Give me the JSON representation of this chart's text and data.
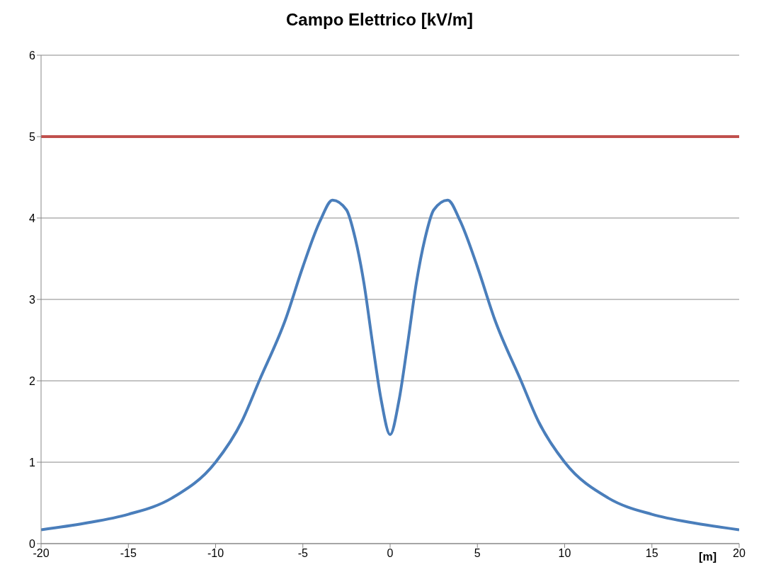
{
  "chart_data": {
    "type": "line",
    "title": "Campo Elettrico [kV/m]",
    "xlabel": "[m]",
    "series": [
      {
        "color": "#4a7ebb",
        "x": [
          -20,
          -17.5,
          -15,
          -12.5,
          -10,
          -8.5,
          -7.5,
          -6,
          -5,
          -4,
          -3.3,
          -2.5,
          -2,
          -1.5,
          -1,
          -0.5,
          0,
          0.5,
          1,
          1.5,
          2,
          2.5,
          3.3,
          4,
          5,
          6,
          7.5,
          8.5,
          10,
          12.5,
          15,
          17.5,
          20
        ],
        "values": [
          0.17,
          0.25,
          0.36,
          0.56,
          1.0,
          1.5,
          2.0,
          2.75,
          3.4,
          3.97,
          4.22,
          4.1,
          3.75,
          3.2,
          2.45,
          1.75,
          1.34,
          1.75,
          2.45,
          3.2,
          3.75,
          4.1,
          4.22,
          3.97,
          3.4,
          2.75,
          2.0,
          1.5,
          1.0,
          0.56,
          0.36,
          0.25,
          0.17
        ]
      }
    ],
    "xlim": [
      -20,
      20
    ],
    "xticks": [
      -20,
      -15,
      -10,
      -5,
      0,
      5,
      10,
      15,
      20
    ],
    "ylim": [
      0,
      6
    ],
    "yticks": [
      0,
      1,
      2,
      3,
      4,
      5,
      6
    ],
    "ref_lines": [
      {
        "axis": "y",
        "value": 5,
        "color": "#c0504d"
      }
    ],
    "grid": "y",
    "marker": "none",
    "line_style": "solid"
  }
}
